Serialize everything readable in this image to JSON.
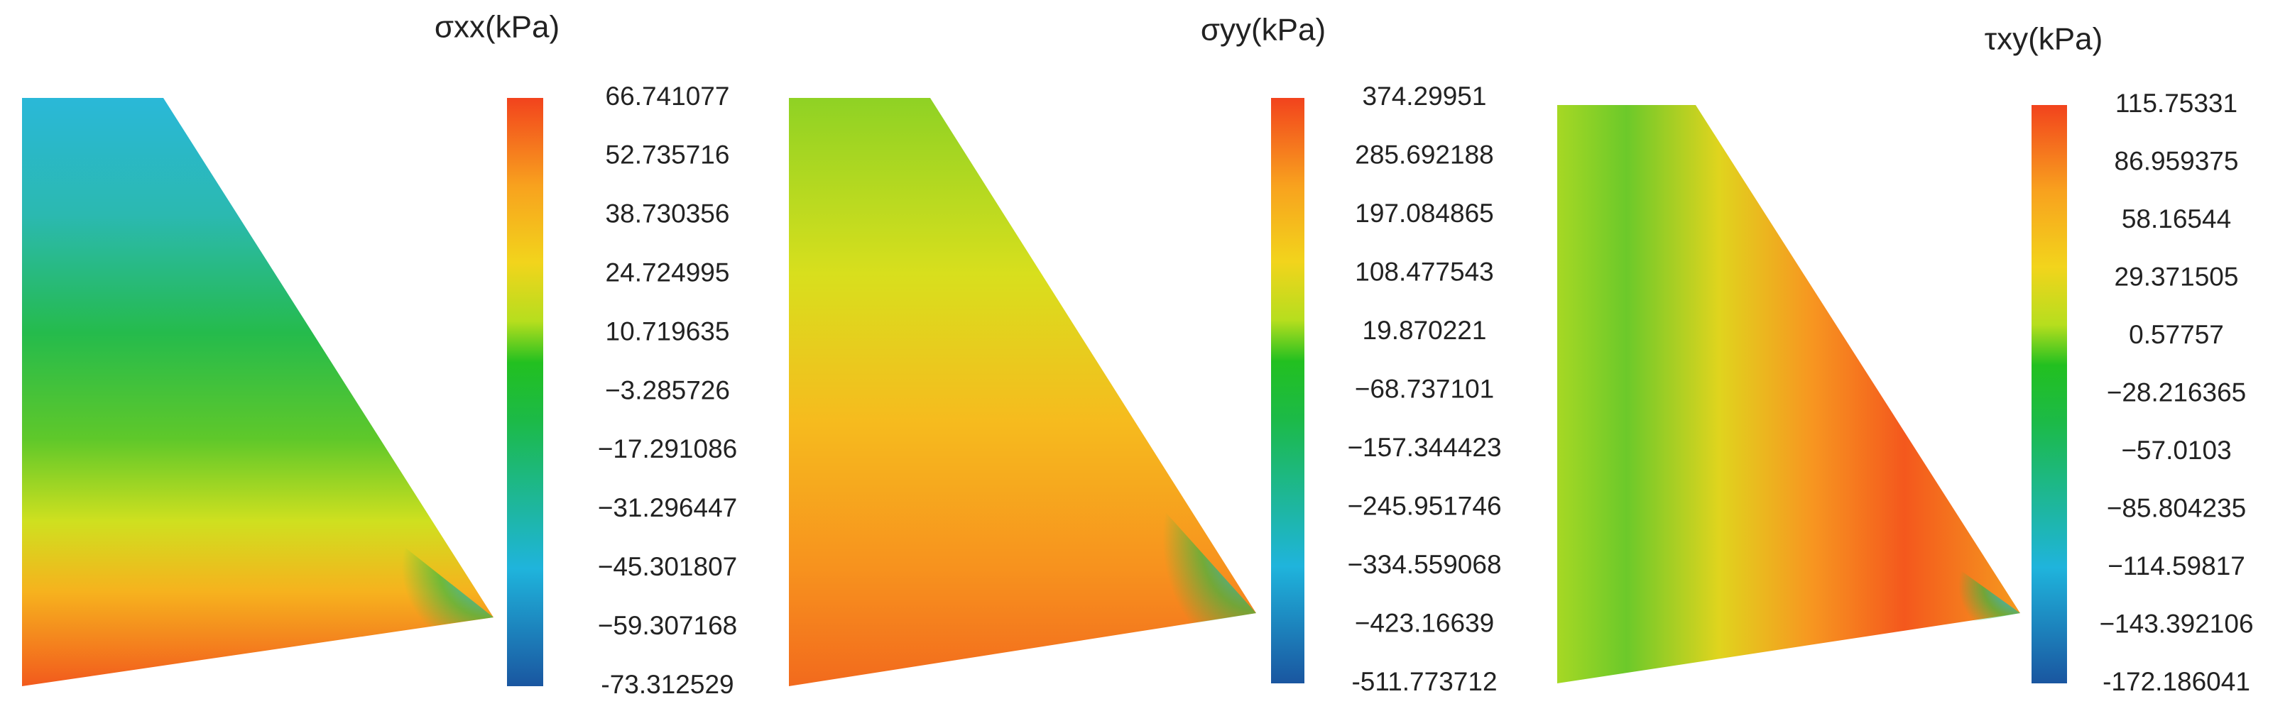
{
  "chart_data": [
    {
      "type": "contour",
      "title": "σxx(kPa)",
      "clim": [
        -73.312529,
        66.741077
      ],
      "cticks": [
        66.741077,
        52.735716,
        38.730356,
        24.724995,
        10.719635,
        {
          "value": -3.285726,
          "label": "−3.285726"
        },
        {
          "value": -17.291086,
          "label": "−17.291086"
        },
        {
          "value": -31.296447,
          "label": "−31.296447"
        },
        {
          "value": -45.301807,
          "label": "−45.301807"
        },
        {
          "value": -59.307168,
          "label": "−59.307168"
        },
        -73.312529
      ]
    },
    {
      "type": "contour",
      "title": "σyy(kPa)",
      "clim": [
        -511.773712,
        374.29951
      ],
      "cticks": [
        374.29951,
        285.692188,
        197.084865,
        108.477543,
        19.870221,
        {
          "value": -68.737101,
          "label": "−68.737101"
        },
        {
          "value": -157.344423,
          "label": "−157.344423"
        },
        {
          "value": -245.951746,
          "label": "−245.951746"
        },
        {
          "value": -334.559068,
          "label": "−334.559068"
        },
        {
          "value": -423.16639,
          "label": "−423.16639"
        },
        -511.773712
      ]
    },
    {
      "type": "contour",
      "title": "τxy(kPa)",
      "clim": [
        -172.186041,
        115.75331
      ],
      "cticks": [
        115.75331,
        86.959375,
        58.16544,
        29.371505,
        0.57757,
        {
          "value": -28.216365,
          "label": "−28.216365"
        },
        {
          "value": -57.0103,
          "label": "−57.0103"
        },
        {
          "value": -85.804235,
          "label": "−85.804235"
        },
        {
          "value": -114.59817,
          "label": "−114.59817"
        },
        {
          "value": -143.392106,
          "label": "−143.392106"
        },
        -172.186041
      ]
    }
  ]
}
